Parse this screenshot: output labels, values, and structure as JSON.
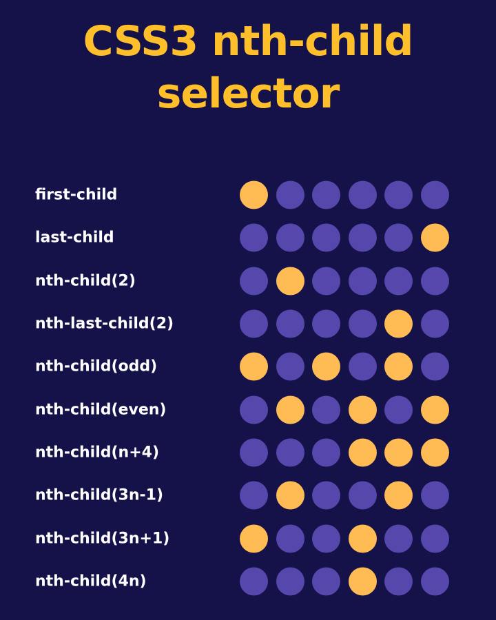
{
  "title": {
    "line1": "CSS3 nth-child",
    "line2": "selector"
  },
  "colors": {
    "background": "#15124a",
    "title": "#ffbf2b",
    "dot_off": "#5647ad",
    "dot_on": "#ffbc55",
    "label": "#ffffff"
  },
  "rows": [
    {
      "label": "first-child",
      "selected": [
        1,
        0,
        0,
        0,
        0,
        0
      ]
    },
    {
      "label": "last-child",
      "selected": [
        0,
        0,
        0,
        0,
        0,
        1
      ]
    },
    {
      "label": "nth-child(2)",
      "selected": [
        0,
        1,
        0,
        0,
        0,
        0
      ]
    },
    {
      "label": "nth-last-child(2)",
      "selected": [
        0,
        0,
        0,
        0,
        1,
        0
      ]
    },
    {
      "label": "nth-child(odd)",
      "selected": [
        1,
        0,
        1,
        0,
        1,
        0
      ]
    },
    {
      "label": "nth-child(even)",
      "selected": [
        0,
        1,
        0,
        1,
        0,
        1
      ]
    },
    {
      "label": "nth-child(n+4)",
      "selected": [
        0,
        0,
        0,
        1,
        1,
        1
      ]
    },
    {
      "label": "nth-child(3n-1)",
      "selected": [
        0,
        1,
        0,
        0,
        1,
        0
      ]
    },
    {
      "label": "nth-child(3n+1)",
      "selected": [
        1,
        0,
        0,
        1,
        0,
        0
      ]
    },
    {
      "label": "nth-child(4n)",
      "selected": [
        0,
        0,
        0,
        1,
        0,
        0
      ]
    }
  ]
}
